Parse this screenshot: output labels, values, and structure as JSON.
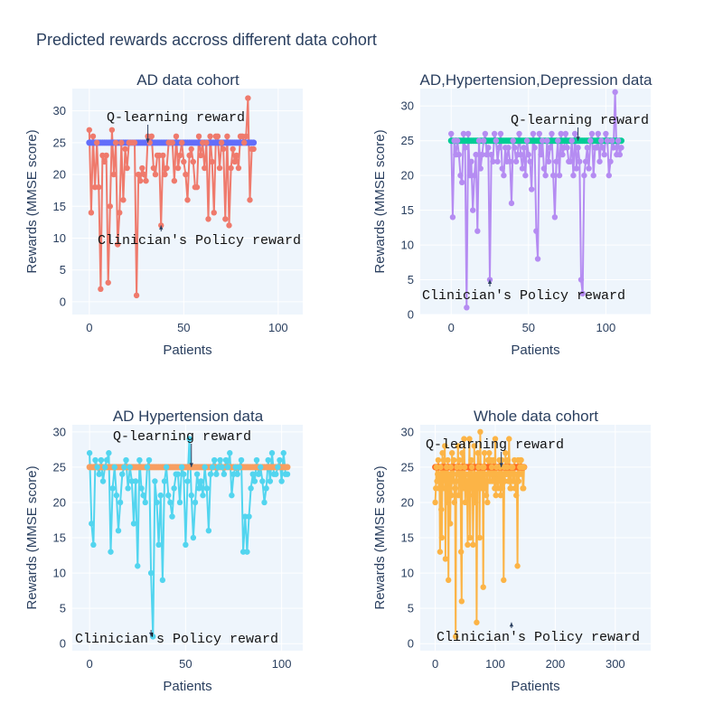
{
  "figure": {
    "title": "Predicted rewards accross different data cohort",
    "colors": {
      "plot_bg": "#eef5fc",
      "grid": "#ffffff",
      "text": "#2a3f5f"
    }
  },
  "chart_data": [
    {
      "type": "line",
      "title": "AD data cohort",
      "xlabel": "Patients",
      "ylabel": "Rewards (MMSE score)",
      "xlim": [
        -9,
        113
      ],
      "ylim": [
        -2,
        33.5
      ],
      "xticks": [
        0,
        50,
        100
      ],
      "yticks": [
        0,
        5,
        10,
        15,
        20,
        25,
        30
      ],
      "grid": true,
      "series": [
        {
          "role": "clinician",
          "color": "#ef7a6c",
          "y": [
            27,
            14,
            26,
            18,
            25,
            18,
            2,
            23,
            22,
            23,
            3,
            15,
            27,
            20,
            25,
            9,
            14,
            25,
            16,
            24,
            21,
            25,
            25,
            25,
            25,
            1,
            20,
            19,
            21,
            20,
            19,
            26,
            25,
            26,
            21,
            20,
            23,
            23,
            12,
            23,
            20,
            21,
            25,
            25,
            25,
            19,
            26,
            21,
            23,
            25,
            22,
            20,
            16,
            23,
            24,
            22,
            18,
            18,
            26,
            23,
            25,
            21,
            25,
            13,
            26,
            22,
            14,
            26,
            26,
            21,
            25,
            24,
            13,
            26,
            12,
            21,
            24,
            22,
            23,
            21,
            26,
            26,
            25,
            26,
            32,
            16,
            24,
            24
          ]
        },
        {
          "role": "q-learning",
          "color": "#636efa",
          "value": 25
        }
      ],
      "annotations": [
        {
          "text": "Q-learning reward",
          "point": [
            31,
            25
          ]
        },
        {
          "text": "Clinician's Policy reward",
          "point": [
            38,
            12
          ]
        }
      ]
    },
    {
      "type": "line",
      "title": "AD,Hypertension,Depression data",
      "xlabel": "Patients",
      "ylabel": "Rewards (MMSE score)",
      "xlim": [
        -20,
        129
      ],
      "ylim": [
        0,
        32.5
      ],
      "xticks": [
        0,
        50,
        100
      ],
      "yticks": [
        0,
        5,
        10,
        15,
        20,
        25,
        30
      ],
      "grid": true,
      "series": [
        {
          "role": "clinician",
          "color": "#b58cf2",
          "y": [
            26,
            14,
            25,
            23,
            25,
            23,
            20,
            19,
            26,
            24,
            1,
            26,
            20,
            22,
            15,
            20,
            23,
            12,
            25,
            21,
            23,
            25,
            26,
            23,
            24,
            5,
            23,
            22,
            26,
            25,
            22,
            24,
            26,
            21,
            20,
            24,
            22,
            24,
            22,
            16,
            25,
            24,
            22,
            23,
            26,
            23,
            21,
            24,
            20,
            25,
            23,
            22,
            18,
            26,
            24,
            12,
            8,
            26,
            23,
            25,
            21,
            20,
            25,
            22,
            24,
            26,
            20,
            14,
            22,
            25,
            20,
            26,
            23,
            24,
            26,
            24,
            22,
            22,
            25,
            20,
            26,
            21,
            24,
            22,
            5,
            3,
            20,
            22,
            24,
            21,
            25,
            26,
            20,
            24,
            24,
            26,
            22,
            25,
            24,
            23,
            26,
            25,
            20,
            22,
            25,
            24,
            32,
            23,
            25,
            23,
            24
          ]
        },
        {
          "role": "q-learning",
          "color": "#00cc96",
          "value": 25
        }
      ],
      "annotations": [
        {
          "text": "Q-learning reward",
          "point": [
            82,
            25
          ]
        },
        {
          "text": "Clinician's Policy reward",
          "point": [
            25,
            5
          ]
        }
      ]
    },
    {
      "type": "line",
      "title": "AD Hypertension data",
      "xlabel": "Patients",
      "ylabel": "Rewards (MMSE score)",
      "xlim": [
        -9,
        111
      ],
      "ylim": [
        -1,
        31
      ],
      "xticks": [
        0,
        50,
        100
      ],
      "yticks": [
        0,
        5,
        10,
        15,
        20,
        25,
        30
      ],
      "grid": true,
      "series": [
        {
          "role": "clinician",
          "color": "#52d5ef",
          "y": [
            27,
            17,
            14,
            26,
            25,
            24,
            26,
            23,
            25,
            26,
            27,
            13,
            22,
            25,
            21,
            16,
            20,
            24,
            25,
            26,
            22,
            25,
            23,
            17,
            23,
            11,
            26,
            22,
            21,
            20,
            25,
            26,
            10,
            1,
            23,
            20,
            14,
            21,
            9,
            23,
            25,
            21,
            20,
            18,
            22,
            24,
            24,
            20,
            25,
            24,
            14,
            23,
            29,
            21,
            15,
            20,
            24,
            22,
            23,
            21,
            25,
            22,
            16,
            24,
            25,
            26,
            24,
            25,
            26,
            25,
            24,
            26,
            25,
            27,
            21,
            24,
            25,
            24,
            25,
            26,
            13,
            18,
            13,
            18,
            22,
            24,
            23,
            26,
            24,
            25,
            23,
            20,
            22,
            26,
            23,
            27,
            24,
            24,
            25,
            26,
            23,
            27,
            24,
            24
          ]
        },
        {
          "role": "q-learning",
          "color": "#f79f62",
          "value": 25
        }
      ],
      "annotations": [
        {
          "text": "Q-learning reward",
          "point": [
            53,
            25
          ]
        },
        {
          "text": "Clinician's Policy reward",
          "point": [
            32,
            1
          ]
        }
      ]
    },
    {
      "type": "line",
      "title": "Whole data cohort",
      "xlabel": "Patients",
      "ylabel": "Rewards (MMSE score)",
      "xlim": [
        -25,
        359
      ],
      "ylim": [
        -1,
        31
      ],
      "xticks": [
        0,
        100,
        200,
        300
      ],
      "yticks": [
        0,
        5,
        10,
        15,
        20,
        25,
        30
      ],
      "grid": true,
      "series": [
        {
          "role": "clinician",
          "color": "#fcb446",
          "y": [
            20,
            22,
            25,
            23,
            24,
            26,
            22,
            24,
            13,
            25,
            19,
            15,
            27,
            22,
            26,
            24,
            28,
            12,
            23,
            25,
            20,
            26,
            9,
            24,
            22,
            17,
            25,
            21,
            27,
            23,
            24,
            26,
            20,
            22,
            1,
            23,
            25,
            24,
            28,
            21,
            26,
            24,
            25,
            13,
            6,
            27,
            24,
            22,
            29,
            25,
            20,
            24,
            23,
            23,
            14,
            24,
            22,
            29,
            15,
            22,
            26,
            25,
            23,
            14,
            21,
            28,
            20,
            20,
            24,
            3,
            22,
            27,
            25,
            23,
            15,
            30,
            22,
            24,
            23,
            25,
            8,
            25,
            27,
            22,
            23,
            21,
            24,
            20,
            26,
            26,
            27,
            23,
            24,
            26,
            25,
            23,
            24,
            26,
            24,
            22,
            29,
            21,
            25,
            24,
            23,
            22,
            24,
            26,
            25,
            21,
            23,
            26,
            22,
            24,
            9,
            25,
            23,
            27,
            24,
            24,
            25,
            26,
            23,
            29,
            24,
            22,
            22,
            25,
            25,
            25,
            23,
            24,
            26,
            22,
            22,
            21,
            24,
            11,
            26,
            23,
            24,
            25,
            26,
            26,
            24,
            25,
            22,
            22,
            25
          ]
        },
        {
          "role": "q-learning",
          "color": "#fe6a23",
          "value": 25
        }
      ],
      "annotations": [
        {
          "text": "Q-learning reward",
          "point": [
            110,
            25
          ]
        },
        {
          "text": "Clinician's Policy reward",
          "point": [
            127,
            3
          ]
        }
      ]
    }
  ]
}
